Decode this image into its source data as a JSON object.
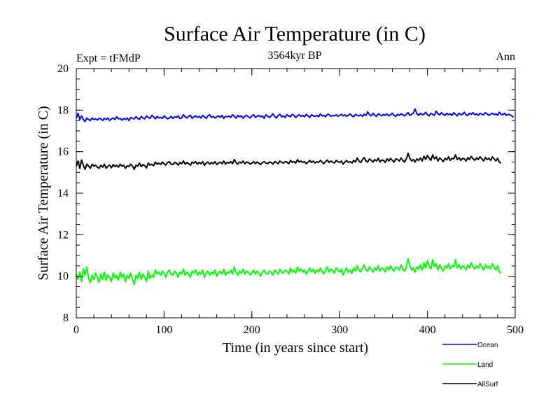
{
  "chart_data": {
    "type": "line",
    "title": "Surface Air Temperature (in C)",
    "subtitle": "3564kyr BP",
    "left_label": "Expt = tFMdP",
    "right_label": "Ann",
    "xlabel": "Time (in years since start)",
    "ylabel": "Surface Air Temperature (in C)",
    "xlim": [
      0,
      500
    ],
    "ylim": [
      8,
      20
    ],
    "xticks": [
      0,
      100,
      200,
      300,
      400,
      500
    ],
    "yticks": [
      8,
      10,
      12,
      14,
      16,
      18,
      20
    ],
    "x_minor_step": 20,
    "y_minor_step": 0.5,
    "grid": false,
    "legend_position": "bottom-right",
    "series_x_start": 0,
    "series_x_step": 2,
    "series": [
      {
        "name": "Ocean",
        "color": "#0000ff",
        "values": [
          17.62,
          17.85,
          17.55,
          17.72,
          17.55,
          17.45,
          17.62,
          17.55,
          17.5,
          17.62,
          17.55,
          17.58,
          17.52,
          17.62,
          17.58,
          17.5,
          17.6,
          17.55,
          17.62,
          17.5,
          17.58,
          17.62,
          17.55,
          17.68,
          17.58,
          17.6,
          17.52,
          17.6,
          17.55,
          17.62,
          17.5,
          17.65,
          17.6,
          17.58,
          17.68,
          17.6,
          17.55,
          17.7,
          17.62,
          17.58,
          17.72,
          17.65,
          17.6,
          17.75,
          17.68,
          17.58,
          17.7,
          17.62,
          17.65,
          17.6,
          17.72,
          17.65,
          17.58,
          17.62,
          17.7,
          17.6,
          17.68,
          17.65,
          17.72,
          17.6,
          17.62,
          17.78,
          17.68,
          17.62,
          17.7,
          17.75,
          17.6,
          17.68,
          17.72,
          17.65,
          17.7,
          17.62,
          17.75,
          17.68,
          17.6,
          17.72,
          17.78,
          17.65,
          17.7,
          17.62,
          17.68,
          17.72,
          17.65,
          17.75,
          17.6,
          17.7,
          17.68,
          17.72,
          17.65,
          17.78,
          17.7,
          17.62,
          17.75,
          17.68,
          17.72,
          17.6,
          17.7,
          17.75,
          17.68,
          17.62,
          17.72,
          17.78,
          17.65,
          17.7,
          17.75,
          17.68,
          17.72,
          17.6,
          17.78,
          17.7,
          17.65,
          17.72,
          17.82,
          17.7,
          17.62,
          17.75,
          17.8,
          17.68,
          17.72,
          17.65,
          17.78,
          17.72,
          17.68,
          17.8,
          17.75,
          17.65,
          17.72,
          17.78,
          17.7,
          17.75,
          17.68,
          17.8,
          17.72,
          17.65,
          17.78,
          17.72,
          17.7,
          17.75,
          17.68,
          17.82,
          17.72,
          17.75,
          17.68,
          17.8,
          17.78,
          17.7,
          17.75,
          17.72,
          17.78,
          17.7,
          17.75,
          17.8,
          17.72,
          17.78,
          17.7,
          17.75,
          17.82,
          17.72,
          17.68,
          17.8,
          17.75,
          17.72,
          17.78,
          17.7,
          17.8,
          17.75,
          17.92,
          17.78,
          17.72,
          17.85,
          17.75,
          17.7,
          17.82,
          17.78,
          17.72,
          17.8,
          17.75,
          17.82,
          17.72,
          17.78,
          17.85,
          17.75,
          17.7,
          17.8,
          17.75,
          17.82,
          17.78,
          17.72,
          17.8,
          17.88,
          17.75,
          17.8,
          17.85,
          18.05,
          17.82,
          17.75,
          17.85,
          17.78,
          17.8,
          17.9,
          17.78,
          17.72,
          17.85,
          17.8,
          17.75,
          17.95,
          17.82,
          17.78,
          17.88,
          17.8,
          17.75,
          17.85,
          17.78,
          17.82,
          17.75,
          17.88,
          17.8,
          17.72,
          17.85,
          17.78,
          17.8,
          17.9,
          17.78,
          17.75,
          17.85,
          17.8,
          17.88,
          17.78,
          17.82,
          17.75,
          17.85,
          17.8,
          17.78,
          17.88,
          17.82,
          17.75,
          17.8,
          17.85,
          17.78,
          17.82,
          17.75,
          17.9,
          17.8,
          17.78,
          17.85,
          17.75,
          17.8,
          17.78,
          17.72,
          17.65
        ]
      },
      {
        "name": "Land",
        "color": "#00ff00",
        "values": [
          10.1,
          9.85,
          10.2,
          9.75,
          10.35,
          10.05,
          10.45,
          9.9,
          9.7,
          10.05,
          9.85,
          10.15,
          9.95,
          9.7,
          10.1,
          9.85,
          10.2,
          9.8,
          10.05,
          9.95,
          9.75,
          10.15,
          9.9,
          10.05,
          9.8,
          10.2,
          9.95,
          10.1,
          9.75,
          10.05,
          9.9,
          10.15,
          9.85,
          9.6,
          10.05,
          9.9,
          10.2,
          9.85,
          10.1,
          9.95,
          9.75,
          10.25,
          9.9,
          10.05,
          9.95,
          10.3,
          10.1,
          10.2,
          10.05,
          10.25,
          10.15,
          9.95,
          10.2,
          10.3,
          10.1,
          10.05,
          10.25,
          10.15,
          9.95,
          10.2,
          10.1,
          10.35,
          10.05,
          10.2,
          10.1,
          9.95,
          10.25,
          10.15,
          10.3,
          10.05,
          10.2,
          10.1,
          10.3,
          9.95,
          10.15,
          10.25,
          10.05,
          10.2,
          10.1,
          10.3,
          10.0,
          10.15,
          10.25,
          10.1,
          10.35,
          10.05,
          10.2,
          10.15,
          10.3,
          10.1,
          10.45,
          10.2,
          10.05,
          10.25,
          10.15,
          10.35,
          10.1,
          10.25,
          10.2,
          10.05,
          10.15,
          10.3,
          10.1,
          10.25,
          10.15,
          10.0,
          10.2,
          10.3,
          10.15,
          10.1,
          10.25,
          10.2,
          10.05,
          10.3,
          10.2,
          10.1,
          10.35,
          10.2,
          10.15,
          10.3,
          10.25,
          10.1,
          10.4,
          10.2,
          10.3,
          10.15,
          10.45,
          10.25,
          10.35,
          10.2,
          10.3,
          10.1,
          10.25,
          10.4,
          10.2,
          10.35,
          10.15,
          10.3,
          10.2,
          10.4,
          10.25,
          10.1,
          10.3,
          10.45,
          10.2,
          10.35,
          10.25,
          10.15,
          10.4,
          10.3,
          10.2,
          10.35,
          10.05,
          10.25,
          10.4,
          10.2,
          10.3,
          10.15,
          10.4,
          10.25,
          10.5,
          10.3,
          10.2,
          10.4,
          10.55,
          10.3,
          10.25,
          10.45,
          10.35,
          10.2,
          10.4,
          10.3,
          10.5,
          10.25,
          10.4,
          10.35,
          10.2,
          10.45,
          10.3,
          10.5,
          10.35,
          10.25,
          10.45,
          10.4,
          10.3,
          10.55,
          10.35,
          10.25,
          10.45,
          10.85,
          10.5,
          10.3,
          10.4,
          10.2,
          10.45,
          10.35,
          10.55,
          10.3,
          10.65,
          10.4,
          10.75,
          10.5,
          10.35,
          10.8,
          10.45,
          10.6,
          10.3,
          10.55,
          10.4,
          10.25,
          10.5,
          10.4,
          10.6,
          10.35,
          10.5,
          10.45,
          10.8,
          10.4,
          10.55,
          10.35,
          10.5,
          10.45,
          10.3,
          10.55,
          10.4,
          10.65,
          10.45,
          10.35,
          10.5,
          10.4,
          10.6,
          10.45,
          10.3,
          10.55,
          10.4,
          10.5,
          10.35,
          10.6,
          10.45,
          10.3,
          10.5,
          10.2,
          10.15
        ]
      },
      {
        "name": "AllSurf",
        "color": "#000000",
        "values": [
          15.3,
          15.55,
          15.2,
          15.6,
          15.35,
          15.15,
          15.4,
          15.3,
          15.2,
          15.4,
          15.3,
          15.35,
          15.25,
          15.2,
          15.35,
          15.25,
          15.4,
          15.2,
          15.3,
          15.35,
          15.22,
          15.38,
          15.28,
          15.35,
          15.25,
          15.4,
          15.3,
          15.35,
          15.2,
          15.32,
          15.28,
          15.4,
          15.3,
          15.15,
          15.35,
          15.3,
          15.45,
          15.28,
          15.38,
          15.32,
          15.22,
          15.45,
          15.35,
          15.4,
          15.32,
          15.5,
          15.4,
          15.45,
          15.38,
          15.5,
          15.42,
          15.35,
          15.48,
          15.52,
          15.4,
          15.38,
          15.48,
          15.45,
          15.35,
          15.48,
          15.42,
          15.55,
          15.4,
          15.48,
          15.42,
          15.35,
          15.5,
          15.45,
          15.52,
          15.4,
          15.48,
          15.42,
          15.52,
          15.35,
          15.45,
          15.5,
          15.4,
          15.48,
          15.42,
          15.52,
          15.38,
          15.45,
          15.5,
          15.42,
          15.55,
          15.4,
          15.48,
          15.45,
          15.52,
          15.42,
          15.62,
          15.48,
          15.4,
          15.5,
          15.45,
          15.55,
          15.42,
          15.5,
          15.48,
          15.4,
          15.45,
          15.52,
          15.42,
          15.5,
          15.45,
          15.38,
          15.48,
          15.52,
          15.45,
          15.42,
          15.5,
          15.48,
          15.4,
          15.52,
          15.48,
          15.42,
          15.55,
          15.48,
          15.45,
          15.52,
          15.5,
          15.42,
          15.58,
          15.48,
          15.52,
          15.45,
          15.62,
          15.5,
          15.55,
          15.48,
          15.52,
          15.42,
          15.5,
          15.58,
          15.48,
          15.55,
          15.45,
          15.52,
          15.48,
          15.58,
          15.5,
          15.42,
          15.52,
          15.6,
          15.48,
          15.55,
          15.5,
          15.45,
          15.58,
          15.52,
          15.48,
          15.55,
          15.4,
          15.5,
          15.58,
          15.48,
          15.52,
          15.45,
          15.58,
          15.5,
          15.7,
          15.55,
          15.48,
          15.62,
          15.72,
          15.55,
          15.5,
          15.65,
          15.58,
          15.5,
          15.62,
          15.55,
          15.68,
          15.5,
          15.6,
          15.58,
          15.48,
          15.65,
          15.55,
          15.68,
          15.58,
          15.5,
          15.65,
          15.62,
          15.55,
          15.7,
          15.58,
          15.5,
          15.65,
          15.92,
          15.68,
          15.55,
          15.62,
          15.5,
          15.65,
          15.58,
          15.7,
          15.55,
          15.78,
          15.62,
          15.82,
          15.68,
          15.58,
          15.85,
          15.65,
          15.75,
          15.55,
          15.7,
          15.62,
          15.52,
          15.68,
          15.6,
          15.75,
          15.58,
          15.68,
          15.65,
          15.85,
          15.62,
          15.72,
          15.58,
          15.68,
          15.65,
          15.55,
          15.72,
          15.62,
          15.78,
          15.65,
          15.58,
          15.7,
          15.62,
          15.75,
          15.65,
          15.55,
          15.72,
          15.62,
          15.68,
          15.58,
          15.75,
          15.65,
          15.55,
          15.68,
          15.5,
          15.45
        ]
      }
    ]
  }
}
